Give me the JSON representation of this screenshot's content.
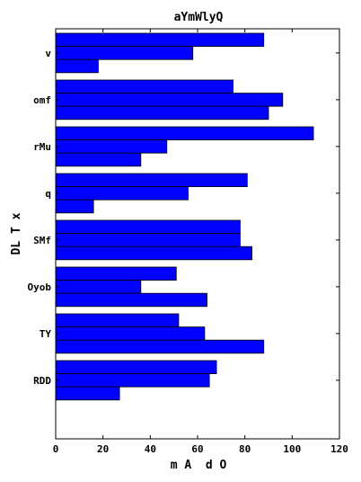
{
  "chart_data": {
    "type": "bar",
    "orientation": "horizontal",
    "title": "aYmWlyQ",
    "xlabel": "m A  d O",
    "ylabel": "DL T x",
    "xlim": [
      0,
      120
    ],
    "xticks": [
      0,
      20,
      40,
      60,
      80,
      100,
      120
    ],
    "categories": [
      "v",
      "omf",
      "rMu",
      "q",
      "SMf",
      "Oyob",
      "TY",
      "RDD"
    ],
    "bar_color": "#0000ff",
    "grid": false,
    "series": [
      {
        "values": [
          88,
          75,
          109,
          81,
          78,
          51,
          52,
          68
        ]
      },
      {
        "values": [
          58,
          96,
          47,
          56,
          78,
          36,
          63,
          65
        ]
      },
      {
        "values": [
          18,
          90,
          36,
          16,
          83,
          64,
          88,
          27
        ]
      }
    ]
  }
}
